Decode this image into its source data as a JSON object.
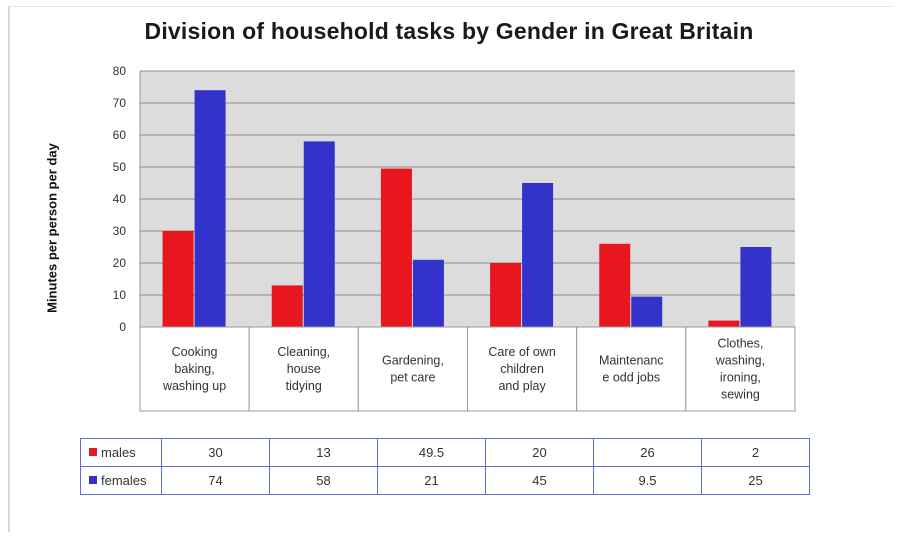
{
  "chart_data": {
    "type": "bar",
    "title": "Division of household tasks by Gender in Great Britain",
    "ylabel": "Minutes per person per day",
    "xlabel": "",
    "ylim": [
      0,
      80
    ],
    "yticks": [
      "0",
      "10",
      "20",
      "30",
      "40",
      "50",
      "60",
      "70",
      "80"
    ],
    "grid": true,
    "categories": [
      [
        "Cooking",
        "baking,",
        "washing up"
      ],
      [
        "Cleaning,",
        "house",
        "tidying"
      ],
      [
        "Gardening,",
        "pet care"
      ],
      [
        "Care of own",
        "children",
        "and play"
      ],
      [
        "Maintenanc",
        "e odd jobs"
      ],
      [
        "Clothes,",
        "washing,",
        "ironing,",
        "sewing"
      ]
    ],
    "series": [
      {
        "name": "males",
        "color": "#e8161e",
        "values": [
          30,
          13,
          49.5,
          20,
          26,
          2
        ]
      },
      {
        "name": "females",
        "color": "#3333cc",
        "values": [
          74,
          58,
          21,
          45,
          9.5,
          25
        ]
      }
    ],
    "data_table": [
      {
        "label": "males",
        "cells": [
          "30",
          "13",
          "49.5",
          "20",
          "26",
          "2"
        ]
      },
      {
        "label": "females",
        "cells": [
          "74",
          "58",
          "21",
          "45",
          "9.5",
          "25"
        ]
      }
    ]
  }
}
